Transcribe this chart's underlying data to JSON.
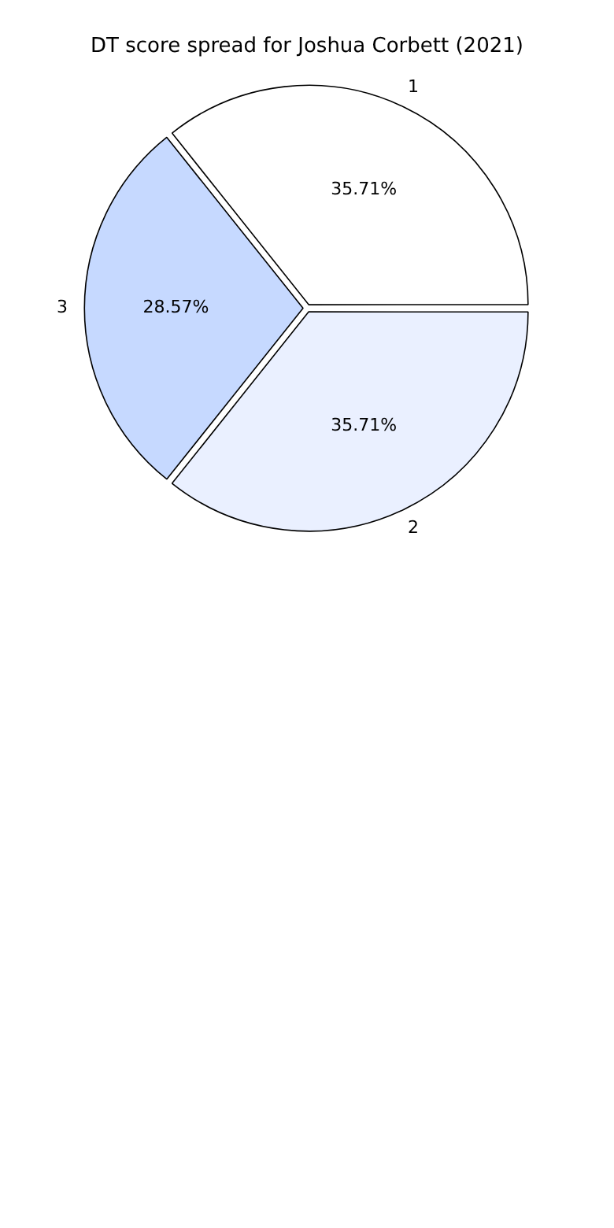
{
  "chart_data": {
    "type": "pie",
    "title": "DT score spread for Joshua Corbett (2021)",
    "categories": [
      "1",
      "2",
      "3"
    ],
    "values": [
      35.71,
      35.71,
      28.57
    ],
    "value_labels": [
      "35.71%",
      "35.71%",
      "28.57%"
    ],
    "colors": [
      "#ffffff",
      "#eaf0ff",
      "#c6d9ff"
    ],
    "legend": false
  }
}
